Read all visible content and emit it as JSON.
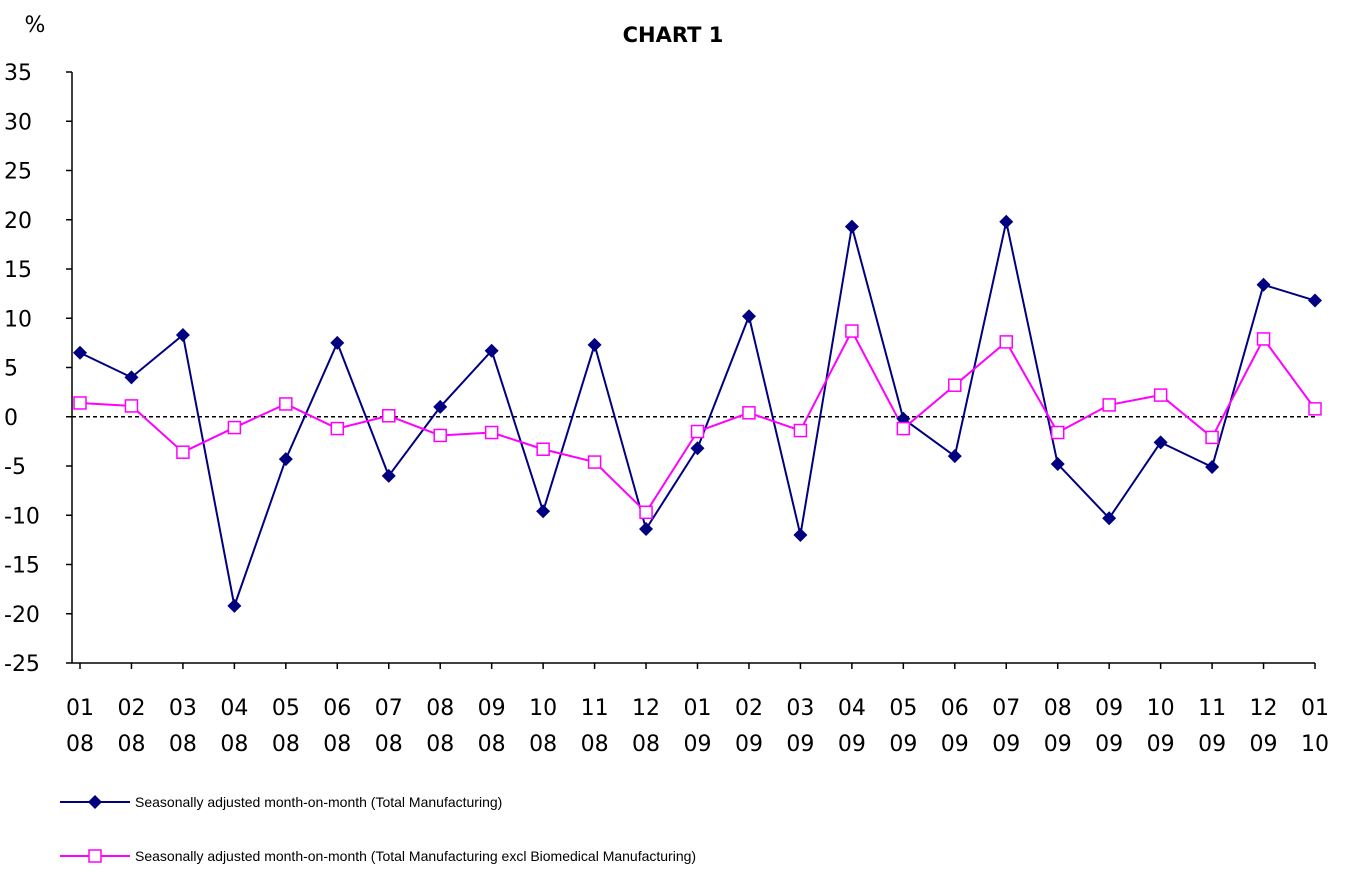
{
  "chart_data": {
    "type": "line",
    "title": "CHART 1",
    "y_label": "%",
    "categories": [
      [
        "01",
        "08"
      ],
      [
        "02",
        "08"
      ],
      [
        "03",
        "08"
      ],
      [
        "04",
        "08"
      ],
      [
        "05",
        "08"
      ],
      [
        "06",
        "08"
      ],
      [
        "07",
        "08"
      ],
      [
        "08",
        "08"
      ],
      [
        "09",
        "08"
      ],
      [
        "10",
        "08"
      ],
      [
        "11",
        "08"
      ],
      [
        "12",
        "08"
      ],
      [
        "01",
        "09"
      ],
      [
        "02",
        "09"
      ],
      [
        "03",
        "09"
      ],
      [
        "04",
        "09"
      ],
      [
        "05",
        "09"
      ],
      [
        "06",
        "09"
      ],
      [
        "07",
        "09"
      ],
      [
        "08",
        "09"
      ],
      [
        "09",
        "09"
      ],
      [
        "10",
        "09"
      ],
      [
        "11",
        "09"
      ],
      [
        "12",
        "09"
      ],
      [
        "01",
        "10"
      ]
    ],
    "series": [
      {
        "name": "Seasonally adjusted month-on-month (Total Manufacturing)",
        "color": "#000080",
        "marker": "diamond",
        "values": [
          6.5,
          4,
          8.3,
          -19.2,
          -4.3,
          7.5,
          -6,
          1,
          6.7,
          -9.6,
          7.3,
          -11.4,
          -3.2,
          10.2,
          -12,
          19.3,
          -0.2,
          -4,
          19.8,
          -4.8,
          -10.3,
          -2.6,
          -5.1,
          13.4,
          11.8
        ]
      },
      {
        "name": "Seasonally adjusted month-on-month (Total Manufacturing excl Biomedical Manufacturing)",
        "color": "#ff00ff",
        "marker": "square",
        "values": [
          1.4,
          1.1,
          -3.6,
          -1.1,
          1.3,
          -1.2,
          0.1,
          -1.9,
          -1.6,
          -3.3,
          -4.6,
          -9.7,
          -1.5,
          0.4,
          -1.4,
          8.7,
          -1.2,
          3.2,
          7.6,
          -1.6,
          1.2,
          2.2,
          -2.1,
          7.9,
          0.8
        ]
      }
    ],
    "ylim": [
      -25,
      35
    ],
    "yticks": [
      -25,
      -20,
      -15,
      -10,
      -5,
      0,
      5,
      10,
      15,
      20,
      25,
      30,
      35
    ],
    "grid": false,
    "legend": "bottom"
  }
}
